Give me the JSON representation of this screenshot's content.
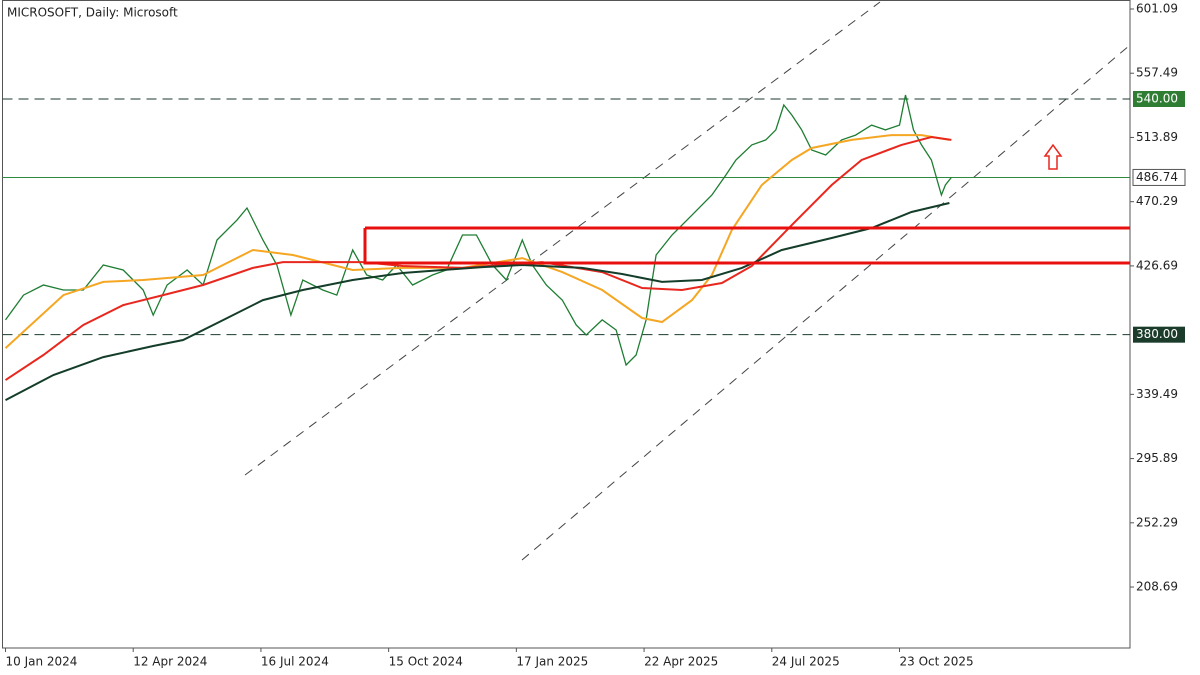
{
  "chart_data": {
    "type": "line",
    "title": "MICROSOFT, Daily:  Microsoft",
    "xlim": [
      -1.5,
      563.5
    ],
    "ylim": [
      167.3,
      607.2
    ],
    "xticks": [
      {
        "value": 0,
        "label": "10 Jan 2024"
      },
      {
        "value": 64,
        "label": "12 Apr 2024"
      },
      {
        "value": 128,
        "label": "16 Jul 2024"
      },
      {
        "value": 192,
        "label": "15 Oct 2024"
      },
      {
        "value": 256,
        "label": "17 Jan 2025"
      },
      {
        "value": 320,
        "label": "22 Apr 2025"
      },
      {
        "value": 384,
        "label": "24 Jul 2025"
      },
      {
        "value": 448,
        "label": "23 Oct 2025"
      }
    ],
    "yticks": [
      601.09,
      557.49,
      513.89,
      470.29,
      426.69,
      339.49,
      295.89,
      252.29,
      208.69
    ],
    "levels": [
      {
        "value": 540,
        "label": "540.00",
        "color": "#2e7d32",
        "style": "dashed"
      },
      {
        "value": 380,
        "label": "380.00",
        "color": "#1b3b2b",
        "style": "dashed"
      },
      {
        "value": 486.74,
        "label": "486.74",
        "color": "#ffffff",
        "style": "solid"
      }
    ],
    "series": [
      {
        "color": "#1e7d32",
        "x": [
          0,
          9,
          19,
          29,
          39,
          49,
          59,
          69,
          74,
          81,
          91,
          99,
          106,
          116,
          121,
          129,
          136,
          143,
          149,
          159,
          166,
          174,
          181,
          189,
          196,
          204,
          214,
          221,
          229,
          236,
          244,
          251,
          259,
          264,
          271,
          279,
          286,
          291,
          299,
          306,
          311,
          316,
          321,
          326,
          334,
          344,
          354,
          361,
          366,
          374,
          381,
          386,
          390,
          394,
          399,
          404,
          411,
          419,
          426,
          434,
          441,
          448,
          451,
          455,
          459,
          464,
          469,
          471,
          474
        ],
        "values": [
          390.0,
          406.9,
          413.7,
          410.3,
          410.3,
          427.3,
          423.9,
          410.3,
          393.3,
          413.7,
          423.9,
          413.7,
          444.3,
          457.8,
          466.0,
          444.3,
          427.3,
          393.3,
          417.1,
          410.3,
          406.9,
          437.5,
          420.5,
          417.1,
          427.3,
          413.7,
          420.5,
          423.9,
          447.7,
          447.7,
          427.3,
          417.1,
          444.3,
          427.3,
          413.7,
          403.5,
          386.6,
          379.8,
          390.0,
          383.2,
          359.4,
          366.2,
          390.0,
          434.1,
          447.7,
          461.2,
          474.8,
          488.4,
          498.6,
          508.8,
          512.2,
          519.0,
          535.9,
          529.1,
          519.0,
          505.4,
          502.0,
          512.2,
          515.5,
          522.3,
          519.0,
          522.3,
          542.7,
          519.0,
          508.8,
          498.6,
          474.8,
          481.6,
          486.74
        ]
      },
      {
        "color": "#f5a623",
        "x": [
          0,
          29,
          49,
          69,
          99,
          124,
          144,
          174,
          199,
          229,
          259,
          279,
          299,
          319,
          329,
          344,
          354,
          364,
          379,
          394,
          404,
          424,
          444,
          459,
          473
        ],
        "values": [
          370.9,
          406.9,
          415.8,
          417.1,
          420.5,
          437.5,
          434.1,
          423.9,
          425.3,
          425.3,
          432.0,
          422.5,
          410.3,
          391.3,
          388.6,
          403.5,
          420.5,
          451.1,
          481.6,
          498.6,
          506.7,
          512.2,
          515.5,
          515.5,
          512.2
        ]
      },
      {
        "color": "#e8281e",
        "x": [
          0,
          19,
          39,
          59,
          79,
          99,
          124,
          139,
          159,
          179,
          199,
          229,
          249,
          269,
          299,
          319,
          339,
          359,
          374,
          394,
          414,
          429,
          449,
          464,
          474
        ],
        "values": [
          349.2,
          366.2,
          386.6,
          400.1,
          406.9,
          413.7,
          425.3,
          429.3,
          429.3,
          429.3,
          426.6,
          425.3,
          427.3,
          429.3,
          422.5,
          411.7,
          410.3,
          415.1,
          426.6,
          454.4,
          481.6,
          498.6,
          508.8,
          514.2,
          512.2
        ]
      },
      {
        "color": "#143d2a",
        "x": [
          0,
          24,
          49,
          74,
          89,
          109,
          129,
          149,
          174,
          199,
          219,
          239,
          259,
          289,
          309,
          329,
          349,
          369,
          389,
          414,
          434,
          454,
          473
        ],
        "values": [
          335.6,
          352.6,
          364.8,
          372.3,
          376.4,
          389.9,
          403.5,
          410.3,
          417.1,
          421.9,
          423.9,
          425.9,
          427.3,
          425.3,
          421.2,
          415.8,
          417.1,
          425.3,
          437.5,
          445.6,
          452.4,
          463.3,
          469.4
        ]
      }
    ]
  }
}
